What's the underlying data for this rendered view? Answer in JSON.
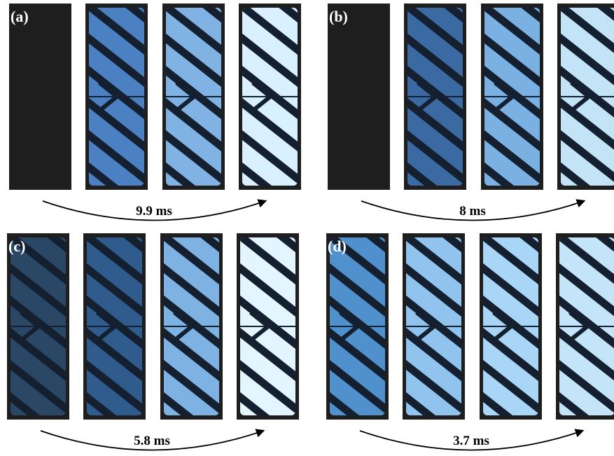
{
  "panels": [
    {
      "label": "(a)",
      "time": "9.9 ms"
    },
    {
      "label": "(b)",
      "time": "8 ms"
    },
    {
      "label": "(c)",
      "time": "5.8 ms"
    },
    {
      "label": "(d)",
      "time": "3.7 ms"
    }
  ]
}
